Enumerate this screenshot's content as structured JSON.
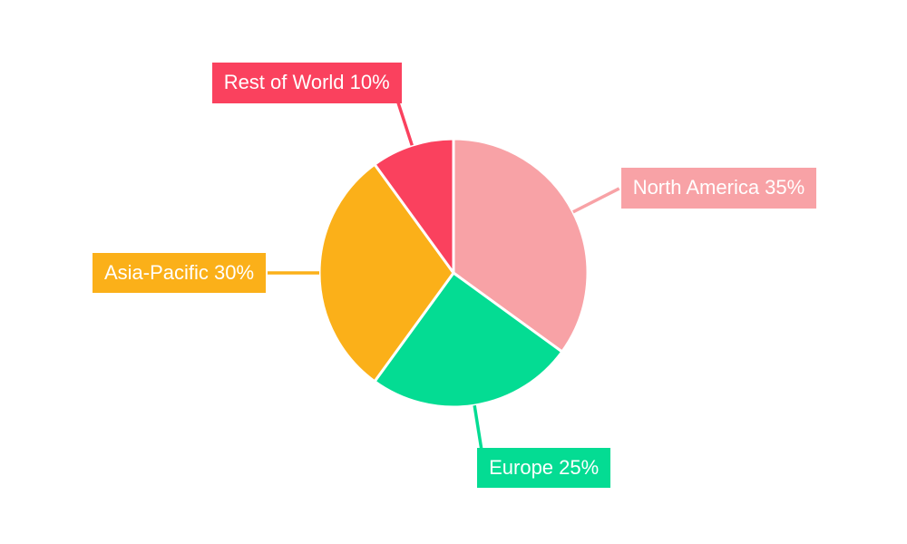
{
  "chart_data": {
    "type": "pie",
    "title": "",
    "categories": [
      "North America",
      "Europe",
      "Asia-Pacific",
      "Rest of World"
    ],
    "values": [
      35,
      25,
      30,
      10
    ],
    "unit": "%",
    "direction": "clockwise",
    "start_angle_deg": 0,
    "legend_position": "callout-labels-with-leader-lines",
    "background_color": "#FFFFFF",
    "label_text_color": "#FFFFFF",
    "slice_gap_color": "#FFFFFF",
    "slices": [
      {
        "label": "North America",
        "value": 35,
        "callout": "North America 35%",
        "color": "#F8A2A6"
      },
      {
        "label": "Europe",
        "value": 25,
        "callout": "Europe 25%",
        "color": "#04DC93"
      },
      {
        "label": "Asia-Pacific",
        "value": 30,
        "callout": "Asia-Pacific 30%",
        "color": "#FBB019"
      },
      {
        "label": "Rest of World",
        "value": 10,
        "callout": "Rest of World 10%",
        "color": "#FA415E"
      }
    ]
  }
}
